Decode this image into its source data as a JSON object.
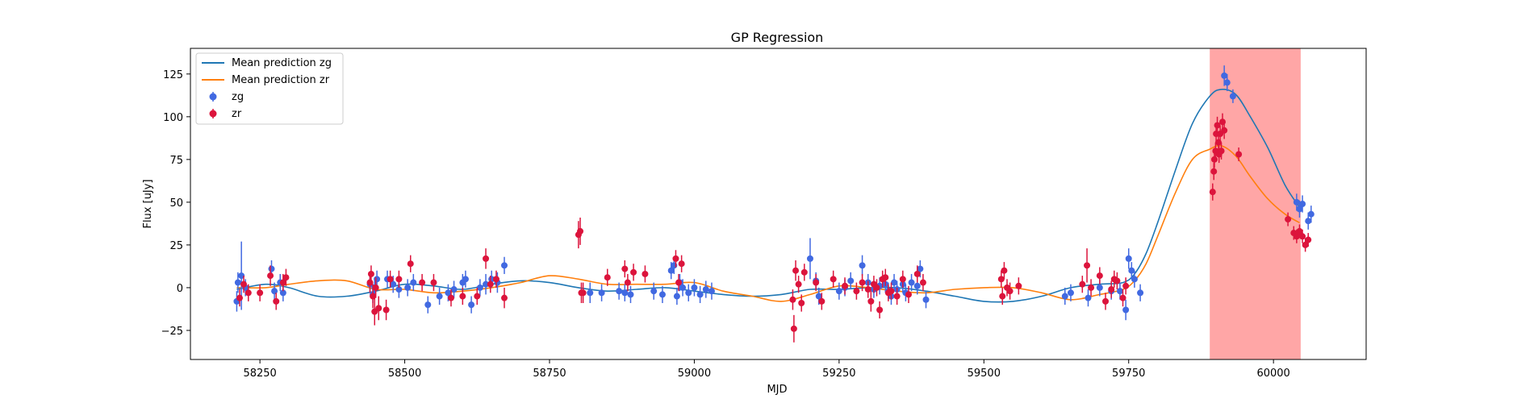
{
  "chart_data": {
    "type": "scatter",
    "title": "GP Regression",
    "xlabel": "MJD",
    "ylabel": "Flux [uJy]",
    "xlim": [
      58130,
      60160
    ],
    "ylim": [
      -42,
      140
    ],
    "xticks": [
      58250,
      58500,
      58750,
      59000,
      59250,
      59500,
      59750,
      60000
    ],
    "yticks": [
      -25,
      0,
      25,
      50,
      75,
      100,
      125
    ],
    "grid": false,
    "legend_position": "top-left",
    "highlight_span": {
      "x0": 59890,
      "x1": 60047,
      "color": "#ff6b6b"
    },
    "series": [
      {
        "name": "Mean prediction zg",
        "kind": "line",
        "color": "#1f77b4",
        "x": [
          58210,
          58260,
          58300,
          58350,
          58400,
          58450,
          58500,
          58550,
          58600,
          58650,
          58700,
          58750,
          58800,
          58850,
          58900,
          58950,
          59000,
          59050,
          59100,
          59150,
          59200,
          59250,
          59300,
          59350,
          59400,
          59450,
          59500,
          59550,
          59600,
          59650,
          59700,
          59740,
          59760,
          59780,
          59800,
          59830,
          59860,
          59890,
          59910,
          59935,
          59960,
          59990,
          60020,
          60045
        ],
        "y": [
          -1,
          2,
          0,
          -5,
          -5,
          -2,
          2,
          1,
          -1,
          2,
          4,
          3,
          0,
          -2,
          -1,
          0,
          -2,
          -4,
          -5,
          -4,
          -1,
          -1,
          0,
          0,
          -2,
          -5,
          -8,
          -8,
          -5,
          0,
          2,
          3,
          8,
          20,
          38,
          68,
          96,
          112,
          116,
          113,
          100,
          82,
          60,
          47
        ]
      },
      {
        "name": "Mean prediction zr",
        "kind": "line",
        "color": "#ff7f0e",
        "x": [
          58210,
          58260,
          58300,
          58350,
          58400,
          58450,
          58500,
          58550,
          58600,
          58650,
          58700,
          58750,
          58800,
          58850,
          58900,
          58950,
          59000,
          59050,
          59100,
          59150,
          59200,
          59250,
          59300,
          59350,
          59400,
          59450,
          59500,
          59550,
          59600,
          59650,
          59700,
          59740,
          59760,
          59780,
          59800,
          59830,
          59860,
          59890,
          59910,
          59935,
          59960,
          59990,
          60020,
          60045
        ],
        "y": [
          0,
          0,
          2,
          4,
          4,
          -1,
          -1,
          -3,
          -2,
          0,
          3,
          7,
          5,
          2,
          2,
          2,
          3,
          -2,
          -5,
          -8,
          -4,
          1,
          0,
          -2,
          -3,
          -1,
          0,
          0,
          -3,
          -7,
          -4,
          -1,
          4,
          14,
          30,
          55,
          75,
          81,
          83,
          77,
          65,
          52,
          43,
          38
        ]
      },
      {
        "name": "zg",
        "kind": "errorbar",
        "color": "#4169e1",
        "x": [
          58210,
          58212,
          58218,
          58225,
          58270,
          58275,
          58285,
          58290,
          58440,
          58445,
          58448,
          58452,
          58470,
          58480,
          58490,
          58505,
          58515,
          58540,
          58560,
          58575,
          58585,
          58600,
          58605,
          58615,
          58630,
          58640,
          58650,
          58660,
          58672,
          58820,
          58840,
          58870,
          58880,
          58890,
          58930,
          58945,
          58960,
          58965,
          58970,
          58975,
          58980,
          58990,
          59000,
          59010,
          59020,
          59030,
          59200,
          59210,
          59215,
          59250,
          59260,
          59270,
          59290,
          59300,
          59310,
          59320,
          59330,
          59335,
          59340,
          59345,
          59350,
          59360,
          59365,
          59375,
          59385,
          59390,
          59400,
          59640,
          59650,
          59680,
          59700,
          59720,
          59735,
          59745,
          59750,
          59755,
          59760,
          59770,
          59915,
          59920,
          59930,
          60040,
          60045,
          60050,
          60060,
          60065
        ],
        "y": [
          -8,
          3,
          7,
          0,
          11,
          -2,
          3,
          -3,
          2,
          -4,
          0,
          5,
          5,
          2,
          -1,
          0,
          3,
          -10,
          -5,
          -3,
          -1,
          3,
          5,
          -10,
          0,
          2,
          5,
          3,
          13,
          -3,
          -3,
          -2,
          -3,
          -4,
          -2,
          -4,
          10,
          13,
          -5,
          3,
          0,
          -3,
          0,
          -4,
          -1,
          -2,
          17,
          4,
          -5,
          -2,
          0,
          4,
          13,
          3,
          -1,
          1,
          2,
          -2,
          -5,
          3,
          -1,
          2,
          -3,
          3,
          1,
          11,
          -7,
          -5,
          -3,
          -6,
          0,
          -2,
          -2,
          -13,
          17,
          10,
          5,
          -3,
          124,
          120,
          112,
          50,
          46,
          49,
          39,
          43
        ],
        "err": [
          6,
          6,
          20,
          5,
          5,
          5,
          5,
          5,
          5,
          5,
          6,
          5,
          5,
          5,
          5,
          5,
          5,
          5,
          5,
          5,
          5,
          5,
          5,
          5,
          5,
          6,
          5,
          6,
          5,
          6,
          5,
          5,
          5,
          5,
          5,
          5,
          5,
          5,
          5,
          5,
          5,
          5,
          5,
          5,
          5,
          5,
          12,
          5,
          5,
          5,
          5,
          5,
          6,
          5,
          5,
          5,
          5,
          5,
          5,
          5,
          5,
          5,
          5,
          5,
          5,
          5,
          5,
          5,
          5,
          5,
          5,
          5,
          5,
          6,
          6,
          5,
          5,
          5,
          6,
          5,
          4,
          5,
          5,
          5,
          5,
          5
        ]
      },
      {
        "name": "zr",
        "kind": "errorbar",
        "color": "#dc143c",
        "x": [
          58215,
          58222,
          58230,
          58250,
          58268,
          58278,
          58290,
          58295,
          58440,
          58442,
          58445,
          58448,
          58450,
          58455,
          58468,
          58475,
          58490,
          58510,
          58530,
          58550,
          58580,
          58600,
          58625,
          58640,
          58648,
          58658,
          58672,
          58800,
          58803,
          58805,
          58808,
          58850,
          58880,
          58885,
          58895,
          58915,
          58968,
          58973,
          58978,
          59170,
          59172,
          59175,
          59180,
          59185,
          59190,
          59210,
          59220,
          59240,
          59260,
          59280,
          59290,
          59300,
          59305,
          59310,
          59315,
          59320,
          59325,
          59330,
          59335,
          59340,
          59350,
          59360,
          59370,
          59385,
          59395,
          59530,
          59532,
          59535,
          59540,
          59545,
          59560,
          59670,
          59678,
          59685,
          59700,
          59710,
          59720,
          59725,
          59730,
          59740,
          59745,
          59895,
          59897,
          59898,
          59900,
          59901,
          59903,
          59905,
          59906,
          59908,
          59910,
          59912,
          59915,
          59940,
          60025,
          60035,
          60040,
          60045,
          60050,
          60055,
          60060
        ],
        "y": [
          -6,
          2,
          -3,
          -3,
          7,
          -8,
          3,
          6,
          3,
          8,
          -5,
          -14,
          0,
          -12,
          -13,
          5,
          5,
          14,
          3,
          3,
          -6,
          -5,
          -5,
          17,
          2,
          5,
          -6,
          31,
          33,
          -3,
          -3,
          6,
          11,
          3,
          9,
          8,
          17,
          3,
          14,
          -7,
          -24,
          10,
          2,
          -9,
          9,
          3,
          -8,
          5,
          1,
          -2,
          3,
          -1,
          -8,
          2,
          0,
          -13,
          5,
          6,
          -3,
          -2,
          -5,
          5,
          -4,
          8,
          3,
          5,
          -5,
          10,
          0,
          -2,
          1,
          2,
          13,
          0,
          7,
          -8,
          -1,
          5,
          4,
          -6,
          1,
          56,
          68,
          75,
          80,
          90,
          95,
          85,
          78,
          90,
          80,
          97,
          92,
          78,
          40,
          32,
          30,
          33,
          30,
          25,
          28
        ],
        "err": [
          5,
          5,
          5,
          5,
          6,
          5,
          5,
          5,
          6,
          5,
          7,
          8,
          6,
          7,
          6,
          5,
          5,
          5,
          5,
          5,
          5,
          5,
          5,
          6,
          5,
          5,
          6,
          8,
          8,
          6,
          6,
          5,
          5,
          5,
          5,
          5,
          5,
          5,
          5,
          6,
          8,
          6,
          5,
          5,
          5,
          5,
          5,
          5,
          5,
          5,
          5,
          5,
          6,
          5,
          5,
          5,
          5,
          5,
          5,
          5,
          5,
          5,
          5,
          5,
          5,
          5,
          5,
          5,
          5,
          5,
          5,
          5,
          10,
          5,
          5,
          5,
          5,
          5,
          5,
          5,
          5,
          5,
          5,
          5,
          5,
          5,
          5,
          5,
          5,
          5,
          5,
          5,
          5,
          4,
          4,
          4,
          4,
          4,
          4,
          4,
          4
        ]
      }
    ]
  }
}
